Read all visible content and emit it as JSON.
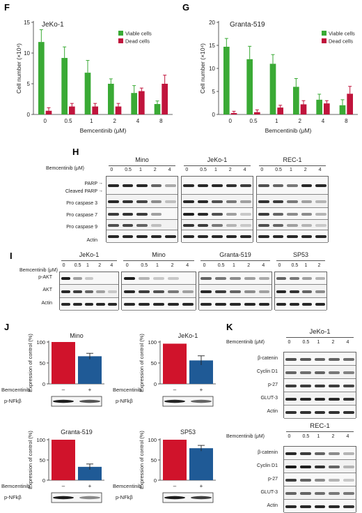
{
  "panels": {
    "F": {
      "letter": "F"
    },
    "G": {
      "letter": "G"
    },
    "H": {
      "letter": "H"
    },
    "I": {
      "letter": "I"
    },
    "J": {
      "letter": "J"
    },
    "K": {
      "letter": "K"
    }
  },
  "legend": {
    "viable": "Viable cells",
    "dead": "Dead cells"
  },
  "colors": {
    "viable": "#3aaa35",
    "dead": "#c0143c",
    "control": "#d0132b",
    "treated": "#1f5a96"
  },
  "chart_data": [
    {
      "id": "F",
      "type": "bar",
      "title": "JeKo-1",
      "xlabel": "Bemcentinib (μM)",
      "ylabel": "Cell number (×10⁴)",
      "categories": [
        "0",
        "0.5",
        "1",
        "2",
        "4",
        "8"
      ],
      "ylim": [
        0,
        15
      ],
      "yticks": [
        0,
        5,
        10,
        15
      ],
      "series": [
        {
          "name": "Viable cells",
          "values": [
            11.8,
            9.2,
            6.8,
            5.0,
            3.5,
            1.7
          ],
          "err": [
            2.0,
            1.8,
            2.0,
            0.8,
            1.2,
            0.5
          ]
        },
        {
          "name": "Dead cells",
          "values": [
            0.6,
            1.3,
            1.3,
            1.3,
            3.8,
            5.0
          ],
          "err": [
            0.5,
            0.5,
            0.5,
            0.5,
            0.5,
            1.4
          ]
        }
      ]
    },
    {
      "id": "G",
      "type": "bar",
      "title": "Granta-519",
      "xlabel": "Bemcentinib (μM)",
      "ylabel": "Cell number (×10⁴)",
      "categories": [
        "0",
        "0.5",
        "1",
        "2",
        "4",
        "8"
      ],
      "ylim": [
        0,
        20
      ],
      "yticks": [
        0,
        5,
        10,
        15,
        20
      ],
      "series": [
        {
          "name": "Viable cells",
          "values": [
            14.7,
            12.0,
            11.0,
            6.0,
            3.2,
            2.0
          ],
          "err": [
            1.8,
            2.8,
            2.0,
            1.8,
            1.2,
            1.2
          ]
        },
        {
          "name": "Dead cells",
          "values": [
            0.3,
            0.5,
            1.5,
            2.2,
            2.4,
            4.5
          ],
          "err": [
            0.4,
            0.5,
            0.5,
            0.8,
            0.6,
            1.6
          ]
        }
      ]
    },
    {
      "id": "J1",
      "type": "bar",
      "title": "Mino",
      "ylabel": "Expression of control (%)",
      "categories": [
        "–",
        "+"
      ],
      "ylim": [
        0,
        100
      ],
      "yticks": [
        0,
        50,
        100
      ],
      "values": [
        100,
        66
      ],
      "err": [
        0,
        7
      ],
      "xaxis_label": "Bemcentinib",
      "blot_label": "p-NFkβ"
    },
    {
      "id": "J2",
      "type": "bar",
      "title": "JeKo-1",
      "ylabel": "Expression of control (%)",
      "categories": [
        "–",
        "+"
      ],
      "ylim": [
        0,
        100
      ],
      "yticks": [
        0,
        50,
        100
      ],
      "values": [
        96,
        56
      ],
      "err": [
        0,
        11
      ],
      "xaxis_label": "Bemcentinib",
      "blot_label": "p-NFkβ"
    },
    {
      "id": "J3",
      "type": "bar",
      "title": "Granta-519",
      "ylabel": "Expression of control (%)",
      "categories": [
        "–",
        "+"
      ],
      "ylim": [
        0,
        100
      ],
      "yticks": [
        0,
        50,
        100
      ],
      "values": [
        100,
        33
      ],
      "err": [
        0,
        7
      ],
      "xaxis_label": "Bemcentinib",
      "blot_label": "p-NFkβ"
    },
    {
      "id": "J4",
      "type": "bar",
      "title": "SP53",
      "ylabel": "Expression of control (%)",
      "categories": [
        "–",
        "+"
      ],
      "ylim": [
        0,
        100
      ],
      "yticks": [
        0,
        50,
        100
      ],
      "values": [
        100,
        79
      ],
      "err": [
        0,
        7
      ],
      "xaxis_label": "Bemcentinib",
      "blot_label": "p-NFkβ"
    }
  ],
  "blotH": {
    "doselabel": "Bemcentinib (μM)",
    "groups": [
      {
        "name": "Mino",
        "doses": [
          "0",
          "0.5",
          "1",
          "2",
          "4"
        ]
      },
      {
        "name": "JeKo-1",
        "doses": [
          "0",
          "0.5",
          "1",
          "2",
          "4"
        ]
      },
      {
        "name": "REC-1",
        "doses": [
          "0",
          "0.5",
          "1",
          "2",
          "4"
        ]
      }
    ],
    "rows": [
      "PARP",
      "Cleaved PARP",
      "Pro caspase 3",
      "Pro caspase 7",
      "Pro caspase 9",
      "Actin"
    ]
  },
  "blotI": {
    "doselabel": "Bemcentinib (μM)",
    "groups": [
      {
        "name": "JeKo-1",
        "doses": [
          "0",
          "0.5",
          "1",
          "2",
          "4"
        ]
      },
      {
        "name": "Mino",
        "doses": [
          "0",
          "0.5",
          "1",
          "2",
          "4"
        ]
      },
      {
        "name": "Granta-519",
        "doses": [
          "0",
          "0.5",
          "1",
          "2",
          "4"
        ]
      },
      {
        "name": "SP53",
        "doses": [
          "0",
          "0.5",
          "1",
          "2"
        ]
      }
    ],
    "rows": [
      "p-AKT",
      "AKT",
      "Actin"
    ]
  },
  "blotK1": {
    "name": "JeKo-1",
    "doselabel": "Bemcentinib (μM)",
    "doses": [
      "0",
      "0.5",
      "1",
      "2",
      "4"
    ],
    "rows": [
      "β-catenin",
      "Cyclin D1",
      "p-27",
      "GLUT-3",
      "Actin"
    ]
  },
  "blotK2": {
    "name": "REC-1",
    "doselabel": "Bemcentinib (μM)",
    "doses": [
      "0",
      "0.5",
      "1",
      "2",
      "4"
    ],
    "rows": [
      "β-catenin",
      "Cyclin D1",
      "p-27",
      "GLUT-3",
      "Actin"
    ]
  }
}
